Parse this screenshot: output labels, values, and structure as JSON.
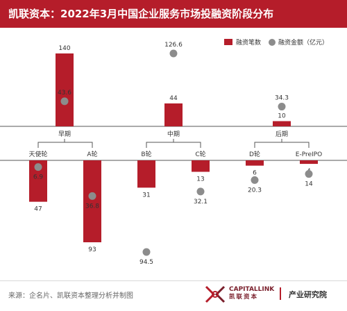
{
  "title": "凯联资本：2022年3月中国企业服务市场投融资阶段分布",
  "colors": {
    "accent": "#b51d2a",
    "bar": "#b51d2a",
    "dot": "#8c8c8c",
    "text": "#333333"
  },
  "legend": {
    "count_label": "融资笔数",
    "amount_label": "融资金额（亿元）"
  },
  "chart_data": [
    {
      "type": "bar",
      "name": "stages",
      "categories": [
        "早期",
        "中期",
        "后期"
      ],
      "series": [
        {
          "name": "融资笔数",
          "values": [
            140,
            44,
            10
          ]
        },
        {
          "name": "融资金额（亿元）",
          "values": [
            43.6,
            126.6,
            34.3
          ]
        }
      ]
    },
    {
      "type": "bar",
      "name": "rounds",
      "categories": [
        "天使轮",
        "A轮",
        "B轮",
        "C轮",
        "D轮",
        "E-PreIPO"
      ],
      "groups": {
        "早期": [
          "天使轮",
          "A轮"
        ],
        "中期": [
          "B轮",
          "C轮"
        ],
        "后期": [
          "D轮",
          "E-PreIPO"
        ]
      },
      "series": [
        {
          "name": "融资笔数",
          "values": [
            47,
            93,
            31,
            13,
            6,
            4
          ]
        },
        {
          "name": "融资金额（亿元）",
          "values": [
            6.9,
            36.8,
            94.5,
            32.1,
            20.3,
            14.0
          ]
        }
      ]
    }
  ],
  "footer": {
    "source": "来源：企名片、凯联资本整理分析并制图",
    "brand_en": "CAPITALLINK",
    "brand_cn": "凯联资本",
    "institute": "产业研究院"
  }
}
